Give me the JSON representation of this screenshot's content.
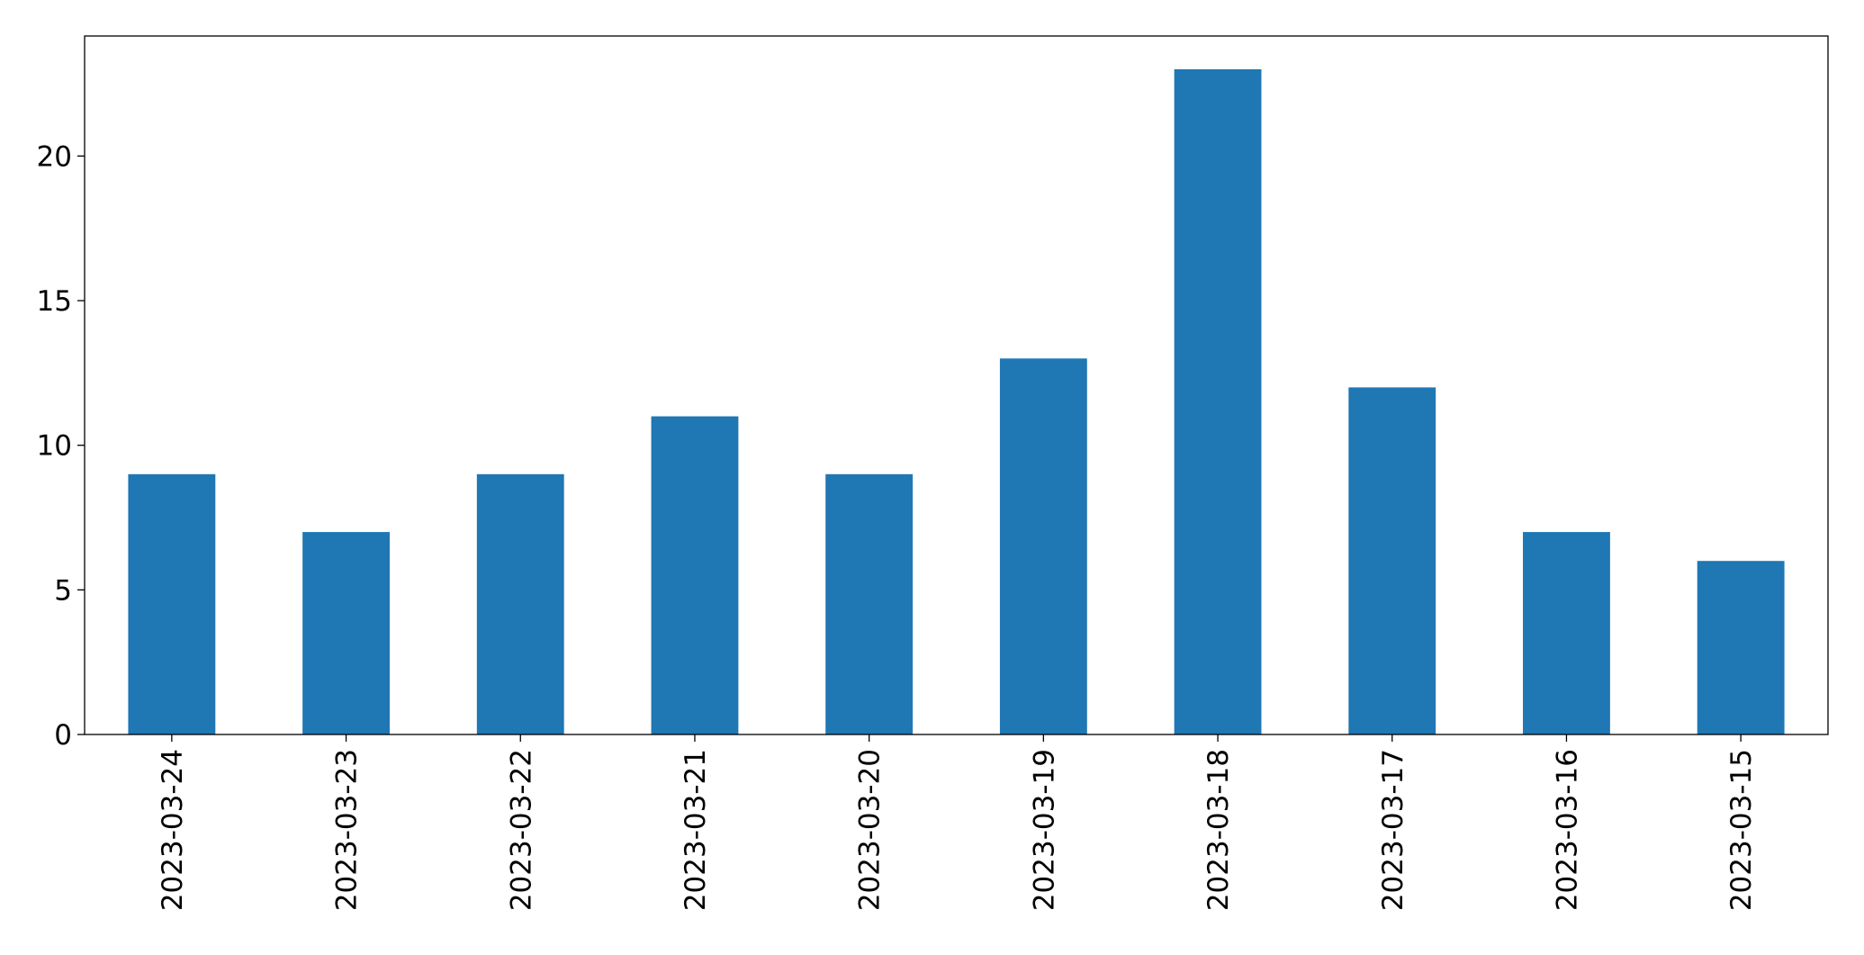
{
  "chart_data": {
    "type": "bar",
    "categories": [
      "2023-03-24",
      "2023-03-23",
      "2023-03-22",
      "2023-03-21",
      "2023-03-20",
      "2023-03-19",
      "2023-03-18",
      "2023-03-17",
      "2023-03-16",
      "2023-03-15"
    ],
    "values": [
      9,
      7,
      9,
      11,
      9,
      13,
      23,
      12,
      7,
      6
    ],
    "color": "#1f77b4",
    "ylim": [
      0,
      24.15
    ],
    "yticks": [
      0,
      5,
      10,
      15,
      20
    ],
    "grid": false
  }
}
